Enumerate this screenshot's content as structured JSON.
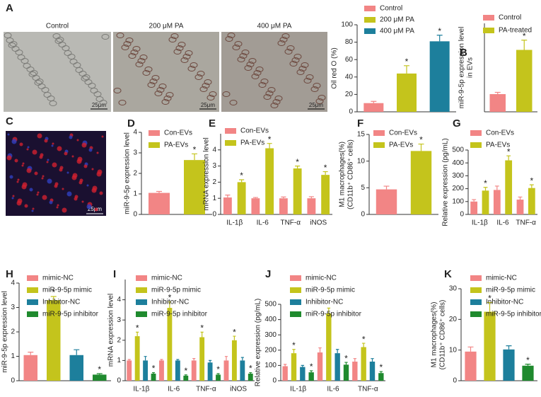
{
  "images": {
    "labels": [
      "Control",
      "200 μM PA",
      "400 μM PA"
    ],
    "scale_bar": "25μm",
    "panel_c": "C"
  },
  "chart_data": [
    {
      "type": "bar",
      "panel": "A",
      "ylabel": [
        "Oil red O (%)"
      ],
      "categories": [
        null
      ],
      "ylim": [
        0,
        100
      ],
      "yticks": [
        0,
        20,
        40,
        60,
        80,
        100
      ],
      "sig_label": "*",
      "series": [
        {
          "name": "Control",
          "color": "#f28585",
          "values": [
            10
          ],
          "errors": [
            2
          ],
          "sig": [
            false
          ]
        },
        {
          "name": "200 μM PA",
          "color": "#c4c41c",
          "values": [
            44
          ],
          "errors": [
            9
          ],
          "sig": [
            true
          ]
        },
        {
          "name": "400 μM PA",
          "color": "#1d7f9c",
          "values": [
            81
          ],
          "errors": [
            7
          ],
          "sig": [
            true
          ]
        }
      ]
    },
    {
      "type": "bar",
      "panel": "B",
      "ylabel": [
        "miR-9-5p expression level",
        "in EVs"
      ],
      "categories": [
        null
      ],
      "ylim": [
        0,
        5
      ],
      "yticks": [],
      "sig_label": "*",
      "series": [
        {
          "name": "Control",
          "color": "#f28585",
          "values": [
            1.0
          ],
          "errors": [
            0.1
          ],
          "sig": [
            false
          ]
        },
        {
          "name": "PA-treated",
          "color": "#c4c41c",
          "values": [
            3.5
          ],
          "errors": [
            0.55
          ],
          "sig": [
            true
          ]
        }
      ]
    },
    {
      "type": "bar",
      "panel": "D",
      "ylabel": [
        "miR-9-5p expression level"
      ],
      "categories": [
        null
      ],
      "ylim": [
        0,
        4
      ],
      "yticks": [
        0,
        1,
        2,
        3,
        4
      ],
      "sig_label": "*",
      "series": [
        {
          "name": "Con-EVs",
          "color": "#f28585",
          "values": [
            1.05
          ],
          "errors": [
            0.07
          ],
          "sig": [
            false
          ]
        },
        {
          "name": "PA-EVs",
          "color": "#c4c41c",
          "values": [
            2.65
          ],
          "errors": [
            0.3
          ],
          "sig": [
            true
          ]
        }
      ]
    },
    {
      "type": "bar",
      "panel": "E",
      "ylabel": [
        "mRNA expression level"
      ],
      "categories": [
        "IL-1β",
        "IL-6",
        "TNF-α",
        "iNOS"
      ],
      "ylim": [
        0,
        5
      ],
      "yticks": [
        0,
        1,
        2,
        3,
        4
      ],
      "sig_label": "*",
      "series": [
        {
          "name": "Con-EVs",
          "color": "#f28585",
          "values": [
            1.05,
            1.0,
            1.0,
            1.0
          ],
          "errors": [
            0.15,
            0.05,
            0.08,
            0.1
          ],
          "sig": [
            false,
            false,
            false,
            false
          ]
        },
        {
          "name": "PA-EVs",
          "color": "#c4c41c",
          "values": [
            2.0,
            4.1,
            2.85,
            2.45
          ],
          "errors": [
            0.15,
            0.3,
            0.15,
            0.2
          ],
          "sig": [
            true,
            true,
            true,
            true
          ]
        }
      ]
    },
    {
      "type": "bar",
      "panel": "F",
      "ylabel": [
        "M1 macrophages(%)",
        "(CD11b⁺ CD86⁺ cells)"
      ],
      "categories": [
        null
      ],
      "ylim": [
        0,
        15
      ],
      "yticks": [
        0,
        5,
        10,
        15
      ],
      "sig_label": "*",
      "series": [
        {
          "name": "Con-EVs",
          "color": "#f28585",
          "values": [
            4.7
          ],
          "errors": [
            0.6
          ],
          "sig": [
            false
          ]
        },
        {
          "name": "PA-EVs",
          "color": "#c4c41c",
          "values": [
            11.9
          ],
          "errors": [
            1.3
          ],
          "sig": [
            true
          ]
        }
      ]
    },
    {
      "type": "bar",
      "panel": "G",
      "ylabel": [
        "Relative expression (pg/mL)"
      ],
      "categories": [
        "IL-1β",
        "IL-6",
        "TNF-α"
      ],
      "ylim": [
        0,
        500
      ],
      "yticks": [
        0,
        100,
        200,
        300,
        400,
        500
      ],
      "sig_label": "*",
      "series": [
        {
          "name": "Con-EVs",
          "color": "#f28585",
          "values": [
            100,
            190,
            115
          ],
          "errors": [
            15,
            30,
            20
          ],
          "sig": [
            false,
            false,
            false
          ]
        },
        {
          "name": "PA-EVs",
          "color": "#c4c41c",
          "values": [
            185,
            420,
            205
          ],
          "errors": [
            25,
            35,
            25
          ],
          "sig": [
            true,
            true,
            true
          ]
        }
      ]
    },
    {
      "type": "bar",
      "panel": "H",
      "ylabel": [
        "miR-9-5p expression level"
      ],
      "categories": [
        null
      ],
      "ylim": [
        0,
        4
      ],
      "yticks": [
        0,
        1,
        2,
        3,
        4
      ],
      "sig_label": "*",
      "series": [
        {
          "name": "mimic-NC",
          "color": "#f28585",
          "values": [
            1.05
          ],
          "errors": [
            0.12
          ],
          "sig": [
            false
          ]
        },
        {
          "name": "miR-9-5p mimic",
          "color": "#c4c41c",
          "values": [
            3.3
          ],
          "errors": [
            0.15
          ],
          "sig": [
            true
          ]
        },
        {
          "name": "Inhibitor-NC",
          "color": "#1d7f9c",
          "values": [
            1.05
          ],
          "errors": [
            0.22
          ],
          "sig": [
            false
          ]
        },
        {
          "name": "miR-9-5p inhibitor",
          "color": "#1f8a2e",
          "values": [
            0.25
          ],
          "errors": [
            0.04
          ],
          "sig": [
            true
          ]
        }
      ]
    },
    {
      "type": "bar",
      "panel": "I",
      "ylabel": [
        "mRNA expression level"
      ],
      "categories": [
        "IL-1β",
        "IL-6",
        "TNF-α",
        "iNOS"
      ],
      "ylim": [
        0,
        5
      ],
      "yticks": [
        0,
        1,
        2,
        3,
        4
      ],
      "sig_label": "*",
      "series": [
        {
          "name": "mimic-NC",
          "color": "#f28585",
          "values": [
            1.0,
            1.0,
            1.0,
            1.0
          ],
          "errors": [
            0.05,
            0.05,
            0.1,
            0.2
          ],
          "sig": [
            false,
            false,
            false,
            false
          ]
        },
        {
          "name": "miR-9-5p mimic",
          "color": "#c4c41c",
          "values": [
            2.2,
            3.6,
            2.15,
            2.0
          ],
          "errors": [
            0.2,
            0.3,
            0.25,
            0.2
          ],
          "sig": [
            true,
            true,
            true,
            true
          ]
        },
        {
          "name": "Inhibitor-NC",
          "color": "#1d7f9c",
          "values": [
            1.0,
            1.0,
            0.9,
            1.0
          ],
          "errors": [
            0.2,
            0.05,
            0.1,
            0.15
          ],
          "sig": [
            false,
            false,
            false,
            false
          ]
        },
        {
          "name": "miR-9-5p inhibitor",
          "color": "#1f8a2e",
          "values": [
            0.35,
            0.25,
            0.3,
            0.35
          ],
          "errors": [
            0.05,
            0.04,
            0.05,
            0.05
          ],
          "sig": [
            true,
            true,
            true,
            true
          ]
        }
      ]
    },
    {
      "type": "bar",
      "panel": "J",
      "ylabel": [
        "Relative expression (pg/mL)"
      ],
      "categories": [
        "IL-1β",
        "IL-6",
        "TNF-α"
      ],
      "ylim": [
        0,
        500
      ],
      "yticks": [
        0,
        100,
        200,
        300,
        400,
        500
      ],
      "sig_label": "*",
      "series": [
        {
          "name": "mimic-NC",
          "color": "#f28585",
          "values": [
            95,
            185,
            125
          ],
          "errors": [
            12,
            30,
            20
          ],
          "sig": [
            false,
            false,
            false
          ]
        },
        {
          "name": "miR-9-5p mimic",
          "color": "#c4c41c",
          "values": [
            180,
            440,
            220
          ],
          "errors": [
            25,
            35,
            25
          ],
          "sig": [
            true,
            false,
            true
          ]
        },
        {
          "name": "Inhibitor-NC",
          "color": "#1d7f9c",
          "values": [
            90,
            180,
            125
          ],
          "errors": [
            10,
            25,
            20
          ],
          "sig": [
            false,
            false,
            false
          ]
        },
        {
          "name": "miR-9-5p inhibitor",
          "color": "#1f8a2e",
          "values": [
            55,
            105,
            50
          ],
          "errors": [
            10,
            15,
            10
          ],
          "sig": [
            true,
            true,
            true
          ]
        }
      ]
    },
    {
      "type": "bar",
      "panel": "K",
      "ylabel": [
        "M1 macrophages(%)",
        "(CD11b⁺ CD86⁺ cells)"
      ],
      "categories": [
        null
      ],
      "ylim": [
        0,
        30
      ],
      "yticks": [
        0,
        10,
        20,
        30
      ],
      "sig_label": "*",
      "series": [
        {
          "name": "mimic-NC",
          "color": "#f28585",
          "values": [
            9.5
          ],
          "errors": [
            1.5
          ],
          "sig": [
            false
          ]
        },
        {
          "name": "miR-9-5p mimic",
          "color": "#c4c41c",
          "values": [
            22.5
          ],
          "errors": [
            3
          ],
          "sig": [
            true
          ]
        },
        {
          "name": "Inhibitor-NC",
          "color": "#1d7f9c",
          "values": [
            10.2
          ],
          "errors": [
            1.2
          ],
          "sig": [
            false
          ]
        },
        {
          "name": "miR-9-5p inhibitor",
          "color": "#1f8a2e",
          "values": [
            4.9
          ],
          "errors": [
            0.5
          ],
          "sig": [
            true
          ]
        }
      ]
    }
  ]
}
